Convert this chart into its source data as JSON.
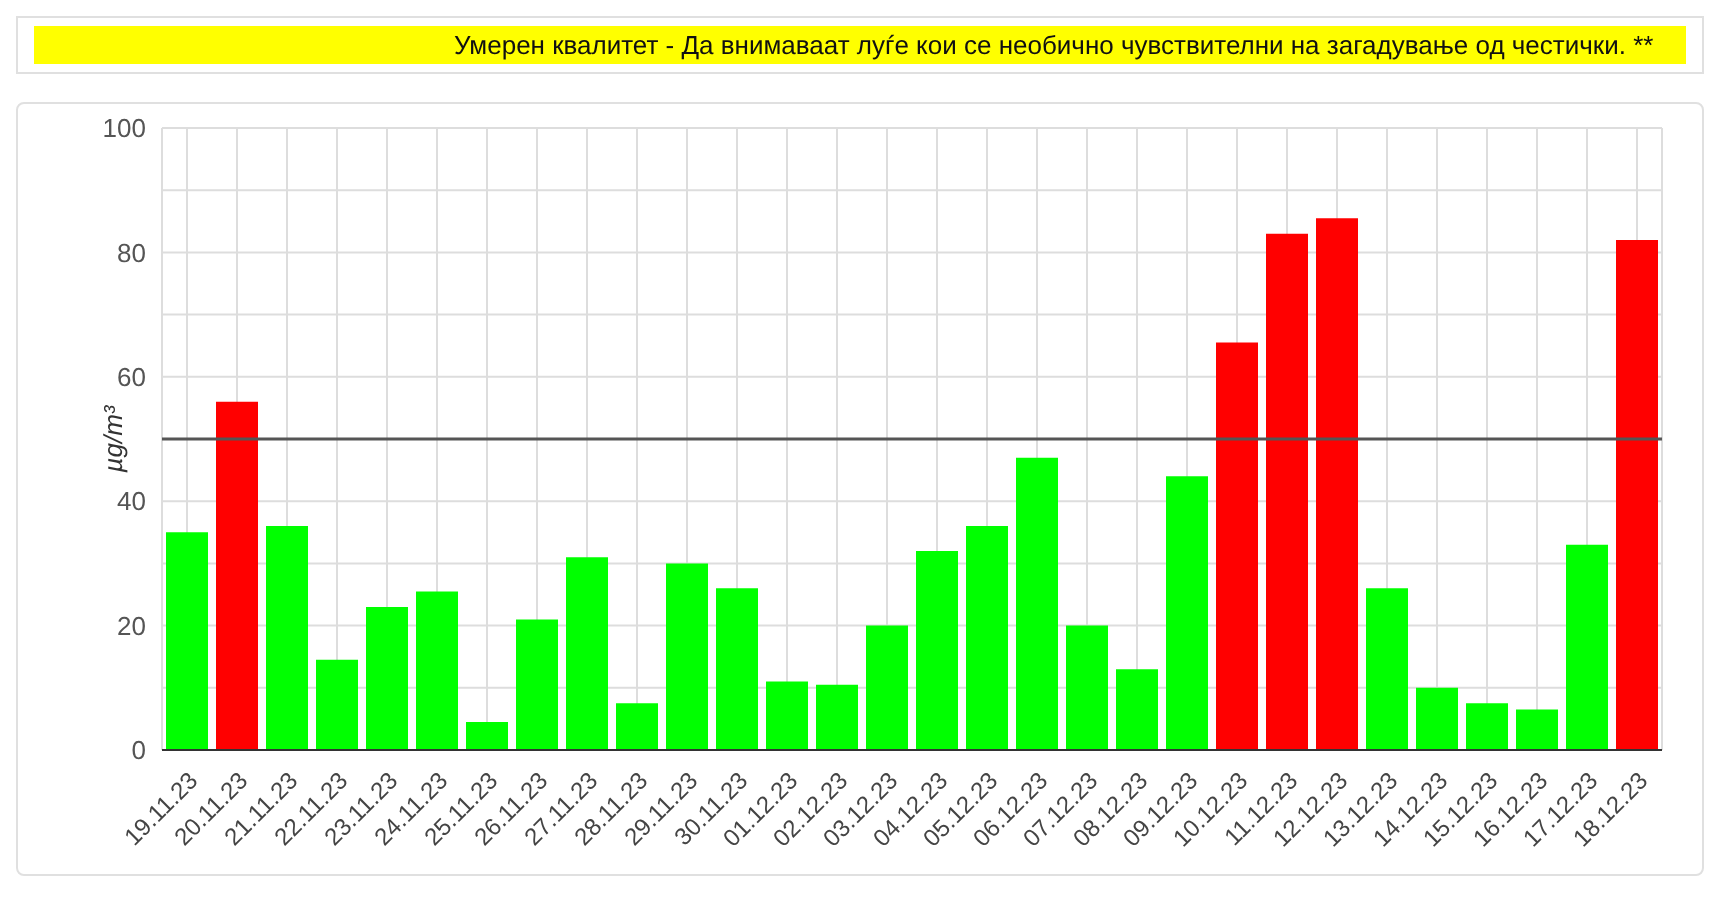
{
  "chart_data": {
    "type": "bar",
    "title": "Умерен квалитет - Да внимаваат луѓе кои се необично чувствителни на загадување од честички. **",
    "ylabel": "µg/m³",
    "categories": [
      "19.11.23",
      "20.11.23",
      "21.11.23",
      "22.11.23",
      "23.11.23",
      "24.11.23",
      "25.11.23",
      "26.11.23",
      "27.11.23",
      "28.11.23",
      "29.11.23",
      "30.11.23",
      "01.12.23",
      "02.12.23",
      "03.12.23",
      "04.12.23",
      "05.12.23",
      "06.12.23",
      "07.12.23",
      "08.12.23",
      "09.12.23",
      "10.12.23",
      "11.12.23",
      "12.12.23",
      "13.12.23",
      "14.12.23",
      "15.12.23",
      "16.12.23",
      "17.12.23",
      "18.12.23"
    ],
    "values": [
      35,
      56,
      36,
      14.5,
      23,
      25.5,
      4.5,
      21,
      31,
      7.5,
      30,
      26,
      11,
      10.5,
      20,
      32,
      36,
      47,
      20,
      13,
      44,
      65.5,
      83,
      85.5,
      26,
      10,
      7.5,
      6.5,
      33,
      82
    ],
    "colors": [
      "#00ff00",
      "#ff0000",
      "#00ff00",
      "#00ff00",
      "#00ff00",
      "#00ff00",
      "#00ff00",
      "#00ff00",
      "#00ff00",
      "#00ff00",
      "#00ff00",
      "#00ff00",
      "#00ff00",
      "#00ff00",
      "#00ff00",
      "#00ff00",
      "#00ff00",
      "#00ff00",
      "#00ff00",
      "#00ff00",
      "#00ff00",
      "#ff0000",
      "#ff0000",
      "#ff0000",
      "#00ff00",
      "#00ff00",
      "#00ff00",
      "#00ff00",
      "#00ff00",
      "#ff0000"
    ],
    "ylim": [
      0,
      100
    ],
    "yticks": [
      0,
      {
        "value": 10,
        "label": null
      },
      20,
      {
        "value": 30,
        "label": null
      },
      40,
      {
        "value": 50,
        "label": null
      },
      60,
      {
        "value": 70,
        "label": null
      },
      80,
      {
        "value": 90,
        "label": null
      },
      100
    ],
    "ref_lines": [
      {
        "axis": "y",
        "value": 50,
        "color": "#555555"
      }
    ],
    "grid": true
  }
}
